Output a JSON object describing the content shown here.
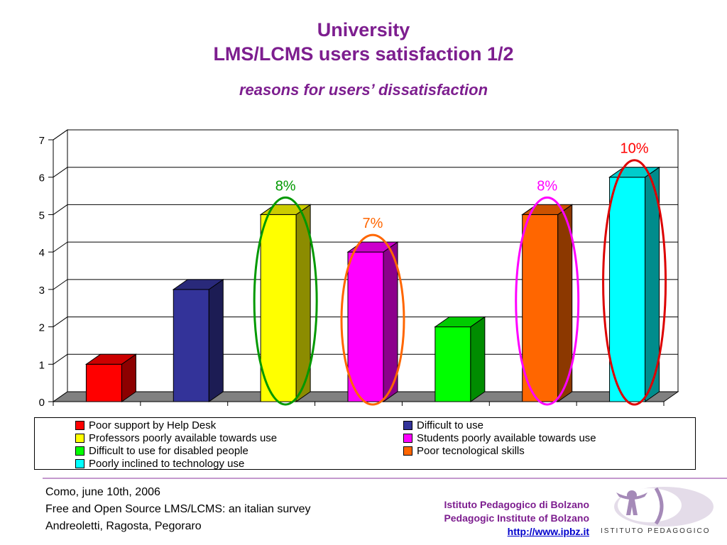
{
  "titles": {
    "line1": "University",
    "line2": "LMS/LCMS users satisfaction 1/2",
    "subtitle": "reasons for users’ dissatisfaction"
  },
  "chart_data": {
    "type": "bar",
    "style": "3d-column",
    "ylim": [
      0,
      7
    ],
    "yticks": [
      "0",
      "1",
      "2",
      "3",
      "4",
      "5",
      "6",
      "7"
    ],
    "grid": true,
    "legend_position": "bottom",
    "series": [
      {
        "name": "Poor support by Help Desk",
        "value": 1,
        "color": "#ff0000"
      },
      {
        "name": "Difficult to use",
        "value": 3,
        "color": "#333399"
      },
      {
        "name": "Professors poorly available towards use",
        "value": 5,
        "color": "#ffff00"
      },
      {
        "name": "Students poorly available towards use",
        "value": 4,
        "color": "#ff00ff"
      },
      {
        "name": "Difficult to use for disabled people",
        "value": 2,
        "color": "#00ff00"
      },
      {
        "name": "Poor tecnological skills",
        "value": 5,
        "color": "#ff6600"
      },
      {
        "name": "Poorly inclined to technology use",
        "value": 6,
        "color": "#00ffff"
      }
    ],
    "annotations": [
      {
        "text": "8%",
        "series_index": 2,
        "color": "#009900"
      },
      {
        "text": "7%",
        "series_index": 3,
        "color": "#ff6600"
      },
      {
        "text": "8%",
        "series_index": 5,
        "color": "#ff00ff"
      },
      {
        "text": "10%",
        "series_index": 6,
        "color": "#ff0000"
      }
    ],
    "ellipse_colors": [
      "#009900",
      "#ff6600",
      "#ff00ff",
      "#dd0000"
    ]
  },
  "footer": {
    "line1": "Como, june 10th, 2006",
    "line2": "Free and Open Source LMS/LCMS: an italian survey",
    "line3": "Andreoletti, Ragosta, Pegoraro"
  },
  "institute": {
    "name_it": "Istituto Pedagogico di Bolzano",
    "name_en": "Pedagogic Institute of Bolzano",
    "url": "http://www.ipbz.it",
    "logo_text": "ISTITUTO PEDAGOGICO"
  }
}
